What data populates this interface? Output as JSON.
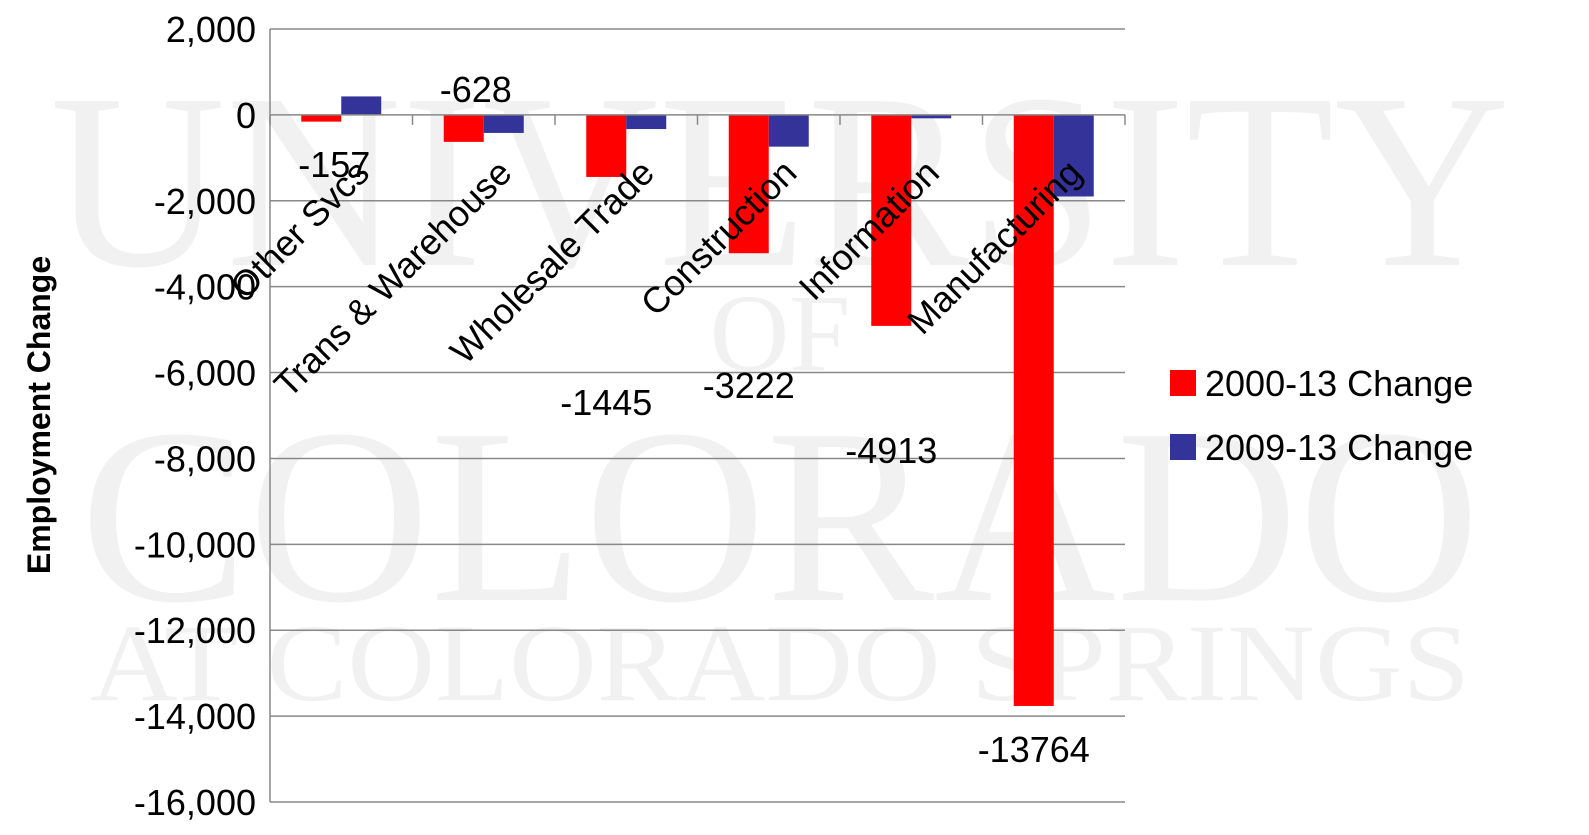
{
  "watermark": {
    "line1": "UNIVERSITY",
    "line2": "OF",
    "line3": "COLORADO",
    "line4": "AT COLORADO SPRINGS"
  },
  "colors": {
    "series_2000_13": "#ff0000",
    "series_2009_13": "#333399",
    "gridline": "#888888",
    "watermark": "#f1f1f1"
  },
  "chart_data": {
    "type": "bar",
    "categories": [
      "Other Svcs",
      "Trans & Warehouse",
      "Wholesale Trade",
      "Construction",
      "Information",
      "Manufacturing"
    ],
    "series": [
      {
        "name": "2000-13 Change",
        "values": [
          -157,
          -628,
          -1445,
          -3222,
          -4913,
          -13764
        ],
        "data_labels": [
          "-157",
          "-628",
          "-1445",
          "-3222",
          "-4913",
          "-13764"
        ]
      },
      {
        "name": "2009-13 Change",
        "values": [
          430,
          -420,
          -330,
          -740,
          -80,
          -1900
        ]
      }
    ],
    "ylabel": "Employment Change",
    "ylim": [
      -16000,
      2000
    ],
    "yticks": [
      2000,
      0,
      -2000,
      -4000,
      -6000,
      -8000,
      -10000,
      -12000,
      -14000,
      -16000
    ],
    "ytick_labels": [
      "2,000",
      "0",
      "-2,000",
      "-4,000",
      "-6,000",
      "-8,000",
      "-10,000",
      "-12,000",
      "-14,000",
      "-16,000"
    ],
    "grid": true,
    "legend_position": "right"
  }
}
